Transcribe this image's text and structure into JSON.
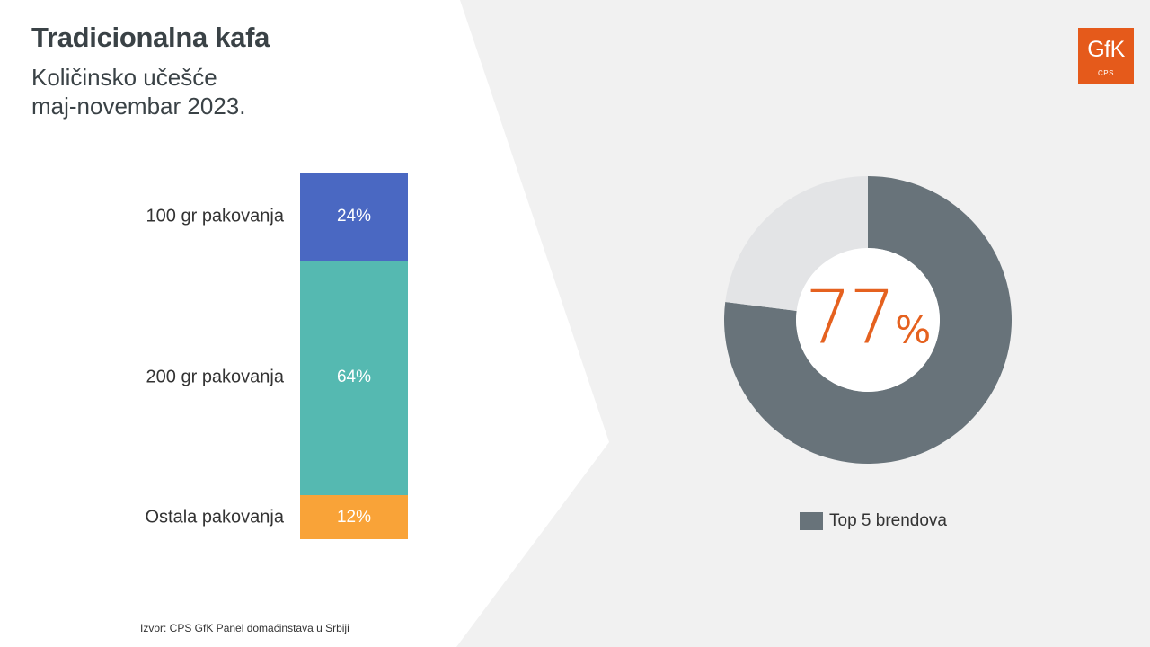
{
  "title": "Tradicionalna kafa",
  "subtitle_line1": "Količinsko učešće",
  "subtitle_line2": "maj-novembar 2023.",
  "logo": {
    "text": "GfK",
    "sub": "CPS",
    "color": "#e55a1b"
  },
  "source": "Izvor: CPS GfK Panel domaćinstava u Srbiji",
  "chart_data": [
    {
      "type": "bar",
      "stacked": true,
      "categories": [
        "100 gr pakovanja",
        "200 gr pakovanja",
        "Ostala pakovanja"
      ],
      "values": [
        24,
        64,
        12
      ],
      "data_labels": [
        "24%",
        "64%",
        "12%"
      ],
      "colors": [
        "#4a68c2",
        "#55b9b1",
        "#f9a338"
      ],
      "unit": "%"
    },
    {
      "type": "pie",
      "donut": true,
      "slices": [
        {
          "name": "Top 5 brendova",
          "value": 77,
          "color": "#68737a"
        },
        {
          "value": 23,
          "color": "#e3e4e6"
        }
      ],
      "center_value": "77",
      "center_unit": "%",
      "center_color": "#e5611f",
      "legend": {
        "label": "Top 5 brendova",
        "position": "bottom"
      }
    }
  ]
}
